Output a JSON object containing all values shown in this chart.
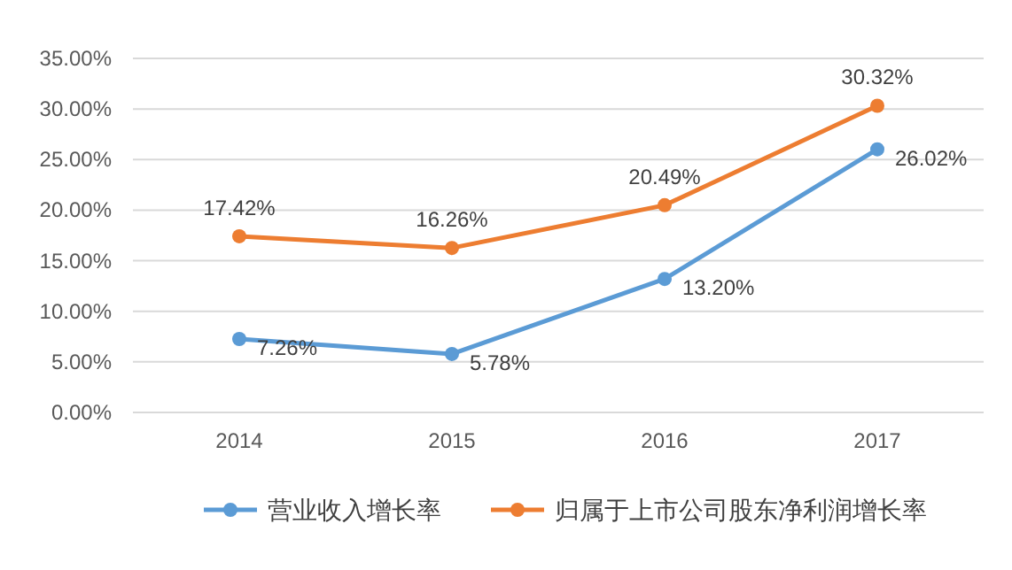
{
  "chart_data": {
    "type": "line",
    "categories": [
      "2014",
      "2015",
      "2016",
      "2017"
    ],
    "series": [
      {
        "name": "营业收入增长率",
        "color": "#5b9bd5",
        "values": [
          7.26,
          5.78,
          13.2,
          26.02
        ],
        "value_labels": [
          "7.26%",
          "5.78%",
          "13.20%",
          "26.02%"
        ]
      },
      {
        "name": "归属于上市公司股东净利润增长率",
        "color": "#ed7d31",
        "values": [
          17.42,
          16.26,
          20.49,
          30.32
        ],
        "value_labels": [
          "17.42%",
          "16.26%",
          "20.49%",
          "30.32%"
        ]
      }
    ],
    "ylim": [
      0,
      35
    ],
    "yticks": [
      {
        "value": 0,
        "label": "0.00%"
      },
      {
        "value": 5,
        "label": "5.00%"
      },
      {
        "value": 10,
        "label": "10.00%"
      },
      {
        "value": 15,
        "label": "15.00%"
      },
      {
        "value": 20,
        "label": "20.00%"
      },
      {
        "value": 25,
        "label": "25.00%"
      },
      {
        "value": 30,
        "label": "30.00%"
      },
      {
        "value": 35,
        "label": "35.00%"
      }
    ],
    "grid": "y",
    "legend": "bottom",
    "marker": "circle",
    "line_style": "solid"
  }
}
